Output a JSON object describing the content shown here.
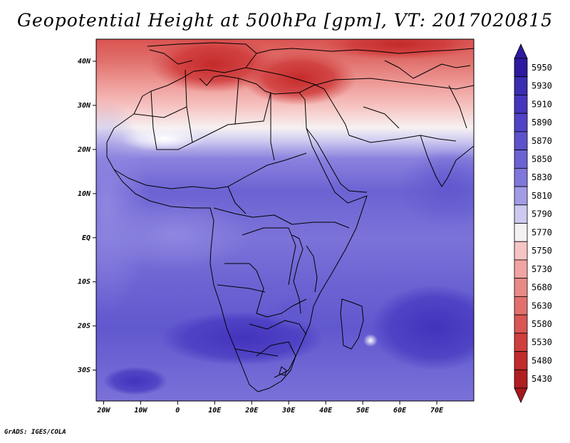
{
  "title": "Geopotential Height at 500hPa [gpm], VT: 2017020815",
  "credit": "GrADS: IGES/COLA",
  "map": {
    "lon_range": [
      -22,
      80
    ],
    "lat_range": [
      -37,
      45
    ],
    "lat_ticks": [
      {
        "value": 40,
        "label": "40N"
      },
      {
        "value": 30,
        "label": "30N"
      },
      {
        "value": 20,
        "label": "20N"
      },
      {
        "value": 10,
        "label": "10N"
      },
      {
        "value": 0,
        "label": "EQ"
      },
      {
        "value": -10,
        "label": "10S"
      },
      {
        "value": -20,
        "label": "20S"
      },
      {
        "value": -30,
        "label": "30S"
      }
    ],
    "lon_ticks": [
      {
        "value": -20,
        "label": "20W"
      },
      {
        "value": -10,
        "label": "10W"
      },
      {
        "value": 0,
        "label": "0"
      },
      {
        "value": 10,
        "label": "10E"
      },
      {
        "value": 20,
        "label": "20E"
      },
      {
        "value": 30,
        "label": "30E"
      },
      {
        "value": 40,
        "label": "40E"
      },
      {
        "value": 50,
        "label": "50E"
      },
      {
        "value": 60,
        "label": "60E"
      },
      {
        "value": 70,
        "label": "70E"
      }
    ]
  },
  "colorbar": {
    "top_color": "#2c1aa0",
    "bottom_color": "#a8181c",
    "entries": [
      {
        "label": "5950",
        "color": "#2c1aa0"
      },
      {
        "label": "5930",
        "color": "#3a2db0"
      },
      {
        "label": "5910",
        "color": "#4536bd"
      },
      {
        "label": "5890",
        "color": "#5143c6"
      },
      {
        "label": "5870",
        "color": "#5d52cc"
      },
      {
        "label": "5850",
        "color": "#6b62d4"
      },
      {
        "label": "5830",
        "color": "#8077dc"
      },
      {
        "label": "5810",
        "color": "#a29ce6"
      },
      {
        "label": "5790",
        "color": "#cdcaf1"
      },
      {
        "label": "5770",
        "color": "#f5f1f3"
      },
      {
        "label": "5750",
        "color": "#f6c4c4"
      },
      {
        "label": "5730",
        "color": "#f1a4a2"
      },
      {
        "label": "5680",
        "color": "#e98a88"
      },
      {
        "label": "5630",
        "color": "#e2706d"
      },
      {
        "label": "5580",
        "color": "#d95653"
      },
      {
        "label": "5530",
        "color": "#cf3f3e"
      },
      {
        "label": "5480",
        "color": "#c22b2b"
      },
      {
        "label": "5430",
        "color": "#b01e20"
      }
    ]
  }
}
